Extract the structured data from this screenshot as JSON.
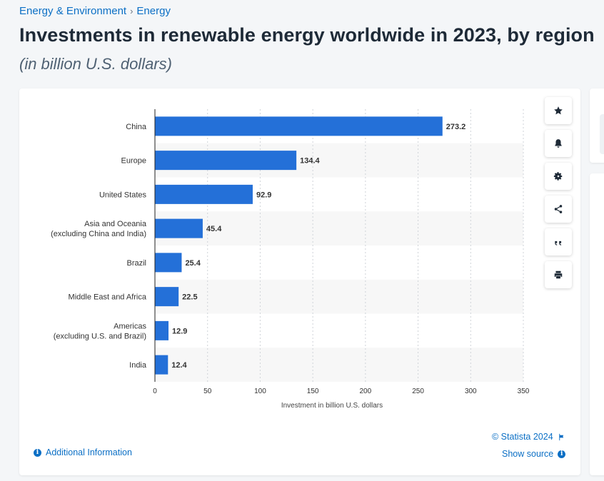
{
  "breadcrumb": {
    "item1": "Energy & Environment",
    "separator": "›",
    "item2": "Energy"
  },
  "header": {
    "title": "Investments in renewable energy worldwide in 2023, by region",
    "subtitle": "(in billion U.S. dollars)"
  },
  "toolbar": {
    "icons": [
      "star-icon",
      "bell-icon",
      "gear-icon",
      "share-icon",
      "quote-icon",
      "print-icon"
    ]
  },
  "footer": {
    "copyright": "© Statista 2024",
    "show_source": "Show source",
    "additional_info": "Additional Information"
  },
  "colors": {
    "bar": "#2470d8",
    "link": "#0b6fc5",
    "stripe": "#f7f7f7"
  },
  "chart_data": {
    "type": "bar",
    "orientation": "horizontal",
    "categories": [
      [
        "China"
      ],
      [
        "Europe"
      ],
      [
        "United States"
      ],
      [
        "Asia and Oceania",
        "(excluding China and India)"
      ],
      [
        "Brazil"
      ],
      [
        "Middle East and Africa"
      ],
      [
        "Americas",
        "(excluding U.S. and Brazil)"
      ],
      [
        "India"
      ]
    ],
    "values": [
      273.2,
      134.4,
      92.9,
      45.4,
      25.4,
      22.5,
      12.9,
      12.4
    ],
    "value_labels": [
      "273.2",
      "134.4",
      "92.9",
      "45.4",
      "25.4",
      "22.5",
      "12.9",
      "12.4"
    ],
    "xlabel": "Investment in billion U.S. dollars",
    "ylabel": "",
    "xlim": [
      0,
      350
    ],
    "ticks": [
      0,
      50,
      100,
      150,
      200,
      250,
      300,
      350
    ],
    "grid": true
  }
}
